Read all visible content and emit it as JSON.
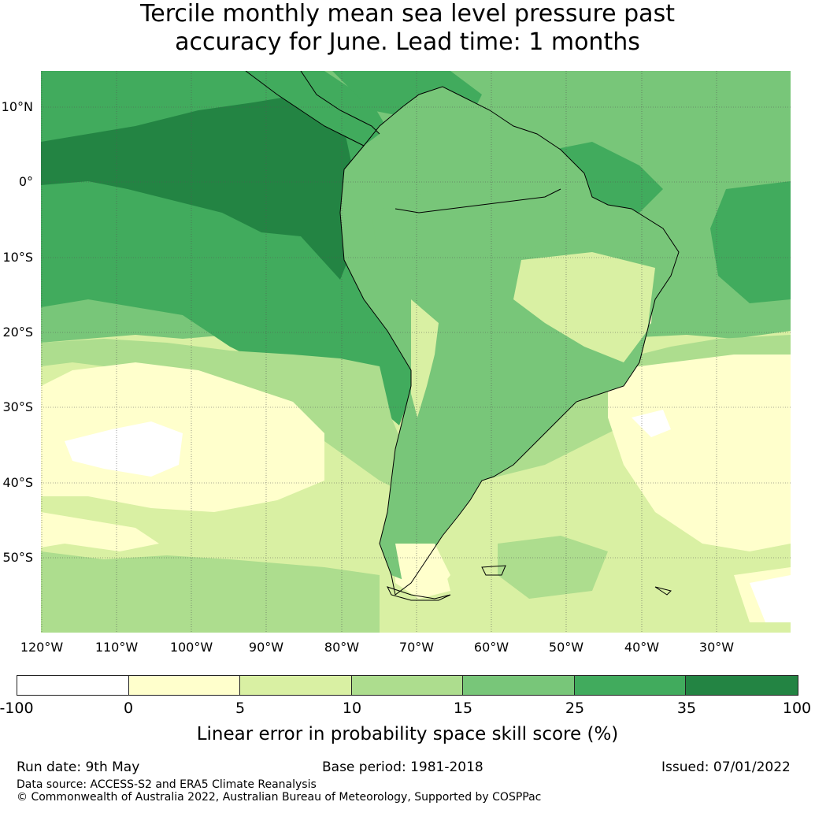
{
  "title_line1": "Tercile monthly mean sea level pressure past",
  "title_line2": "accuracy for June. Lead time: 1 months",
  "colors": {
    "c_neg": "#ffffff",
    "c0": "#ffffcc",
    "c5": "#d9f0a3",
    "c10": "#addd8e",
    "c15": "#78c679",
    "c25": "#41ab5d",
    "c35": "#238443",
    "coast": "#000000",
    "grid": "#555555"
  },
  "lat_labels": [
    "10°N",
    "0°",
    "10°S",
    "20°S",
    "30°S",
    "40°S",
    "50°S"
  ],
  "lon_labels": [
    "120°W",
    "110°W",
    "100°W",
    "90°W",
    "80°W",
    "70°W",
    "60°W",
    "50°W",
    "40°W",
    "30°W"
  ],
  "colorbar": {
    "ticks": [
      "-100",
      "0",
      "5",
      "10",
      "15",
      "25",
      "35",
      "100"
    ],
    "label": "Linear error in probability space skill score (%)"
  },
  "footer": {
    "run_date": "Run date: 9th May",
    "base_period": "Base period: 1981-2018",
    "issued": "Issued: 07/01/2022",
    "data_source": "Data source: ACCESS-S2 and ERA5 Climate Reanalysis",
    "copyright": "© Commonwealth of Australia 2022, Australian Bureau of Meteorology, Supported by COSPPac"
  }
}
